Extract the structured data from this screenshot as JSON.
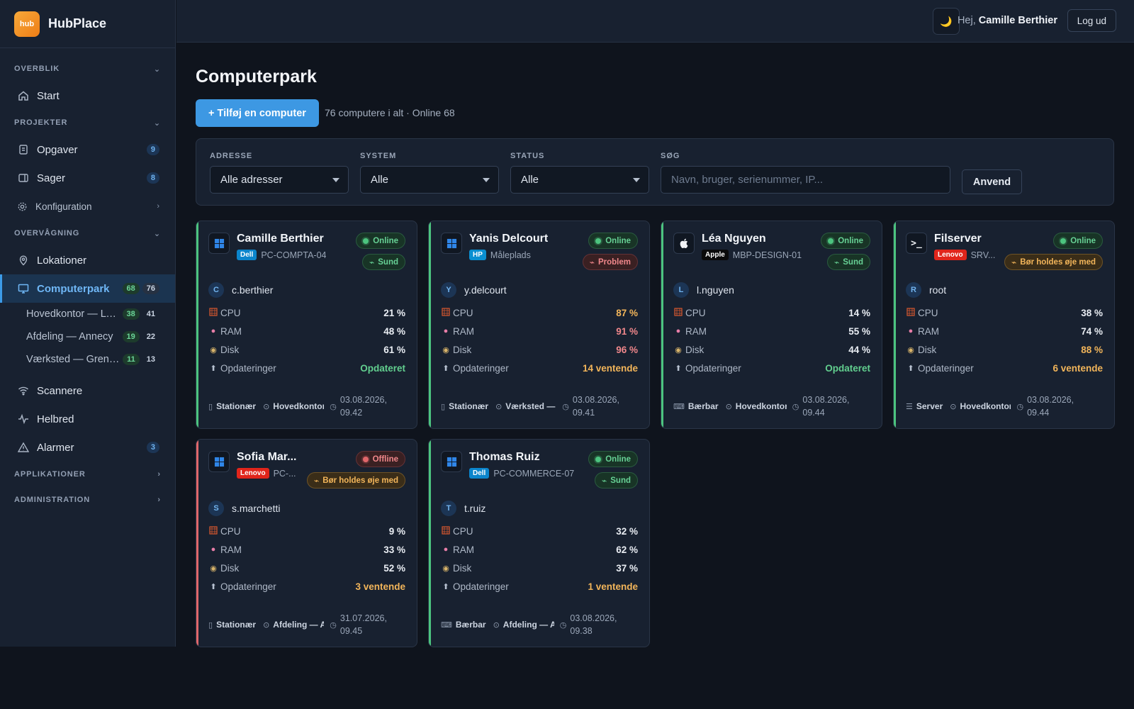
{
  "app": {
    "logo": "hub",
    "name": "HubPlace"
  },
  "sidebar": {
    "sections": {
      "overblik": "OVERBLIK",
      "projekter": "PROJEKTER",
      "overvaagning": "OVERVÅGNING",
      "applikationer": "APPLIKATIONER",
      "administration": "ADMINISTRATION"
    },
    "start": "Start",
    "opgaver": {
      "label": "Opgaver",
      "count": "9"
    },
    "sager": {
      "label": "Sager",
      "count": "8"
    },
    "konfiguration": "Konfiguration",
    "lokationer": "Lokationer",
    "computerpark": {
      "label": "Computerpark",
      "online": "68",
      "total": "76"
    },
    "subitems": [
      {
        "label": "Hovedkontor — Lyon",
        "online": "38",
        "total": "41"
      },
      {
        "label": "Afdeling — Annecy",
        "online": "19",
        "total": "22"
      },
      {
        "label": "Værksted — Grenoble",
        "online": "11",
        "total": "13"
      }
    ],
    "scannere": "Scannere",
    "helbred": "Helbred",
    "alarmer": {
      "label": "Alarmer",
      "count": "3"
    }
  },
  "topbar": {
    "greeting": "Hej,",
    "user": "Camille Berthier",
    "logout": "Log ud"
  },
  "page": {
    "title": "Computerpark",
    "add_button": "+ Tilføj en computer",
    "summary": "76 computere i alt · Online 68"
  },
  "filters": {
    "address": {
      "label": "ADRESSE",
      "value": "Alle adresser"
    },
    "system": {
      "label": "SYSTEM",
      "value": "Alle"
    },
    "status": {
      "label": "STATUS",
      "value": "Alle"
    },
    "search": {
      "label": "SØG",
      "placeholder": "Navn, bruger, serienummer, IP..."
    },
    "apply": "Anvend"
  },
  "metric_labels": {
    "cpu": "CPU",
    "ram": "RAM",
    "disk": "Disk",
    "updates": "Opdateringer"
  },
  "cards": [
    {
      "name": "Camille Berthier",
      "vendor": "Dell",
      "model": "PC-COMPTA-04",
      "os": "windows",
      "status": "Online",
      "health": "Sund",
      "user": "c.berthier",
      "initial": "C",
      "cpu": "21 %",
      "ram": "48 %",
      "disk": "61 %",
      "updates": "Opdateret",
      "type": "Stationær",
      "location": "Hovedkontor",
      "time": "03.08.2026, 09.42"
    },
    {
      "name": "Yanis Delcourt",
      "vendor": "HP",
      "model": "Måleplads",
      "os": "windows",
      "status": "Online",
      "health": "Problem",
      "user": "y.delcourt",
      "initial": "Y",
      "cpu": "87 %",
      "ram": "91 %",
      "disk": "96 %",
      "updates": "14 ventende",
      "type": "Stationær",
      "location": "Værksted — G",
      "time": "03.08.2026, 09.41"
    },
    {
      "name": "Léa Nguyen",
      "vendor": "Apple",
      "model": "MBP-DESIGN-01",
      "os": "apple",
      "status": "Online",
      "health": "Sund",
      "user": "l.nguyen",
      "initial": "L",
      "cpu": "14 %",
      "ram": "55 %",
      "disk": "44 %",
      "updates": "Opdateret",
      "type": "Bærbar",
      "location": "Hovedkontor –",
      "time": "03.08.2026, 09.44"
    },
    {
      "name": "Filserver",
      "vendor": "Lenovo",
      "model": "SRV...",
      "os": "terminal",
      "status": "Online",
      "health": "Bør holdes øje med",
      "user": "root",
      "initial": "R",
      "cpu": "38 %",
      "ram": "74 %",
      "disk": "88 %",
      "updates": "6 ventende",
      "type": "Server",
      "location": "Hovedkontor —",
      "time": "03.08.2026, 09.44"
    },
    {
      "name": "Sofia Mar...",
      "vendor": "Lenovo",
      "model": "PC-...",
      "os": "windows",
      "status": "Offline",
      "health": "Bør holdes øje med",
      "user": "s.marchetti",
      "initial": "S",
      "cpu": "9 %",
      "ram": "33 %",
      "disk": "52 %",
      "updates": "3 ventende",
      "type": "Stationær",
      "location": "Afdeling — A",
      "time": "31.07.2026, 09.45"
    },
    {
      "name": "Thomas Ruiz",
      "vendor": "Dell",
      "model": "PC-COMMERCE-07",
      "os": "windows",
      "status": "Online",
      "health": "Sund",
      "user": "t.ruiz",
      "initial": "T",
      "cpu": "32 %",
      "ram": "62 %",
      "disk": "37 %",
      "updates": "1 ventende",
      "type": "Bærbar",
      "location": "Afdeling — An",
      "time": "03.08.2026, 09.38"
    }
  ],
  "colors": {
    "accent": "#3d98e3",
    "online": "#4cc47f",
    "offline": "#e0666a",
    "warning": "#f2b55a"
  }
}
